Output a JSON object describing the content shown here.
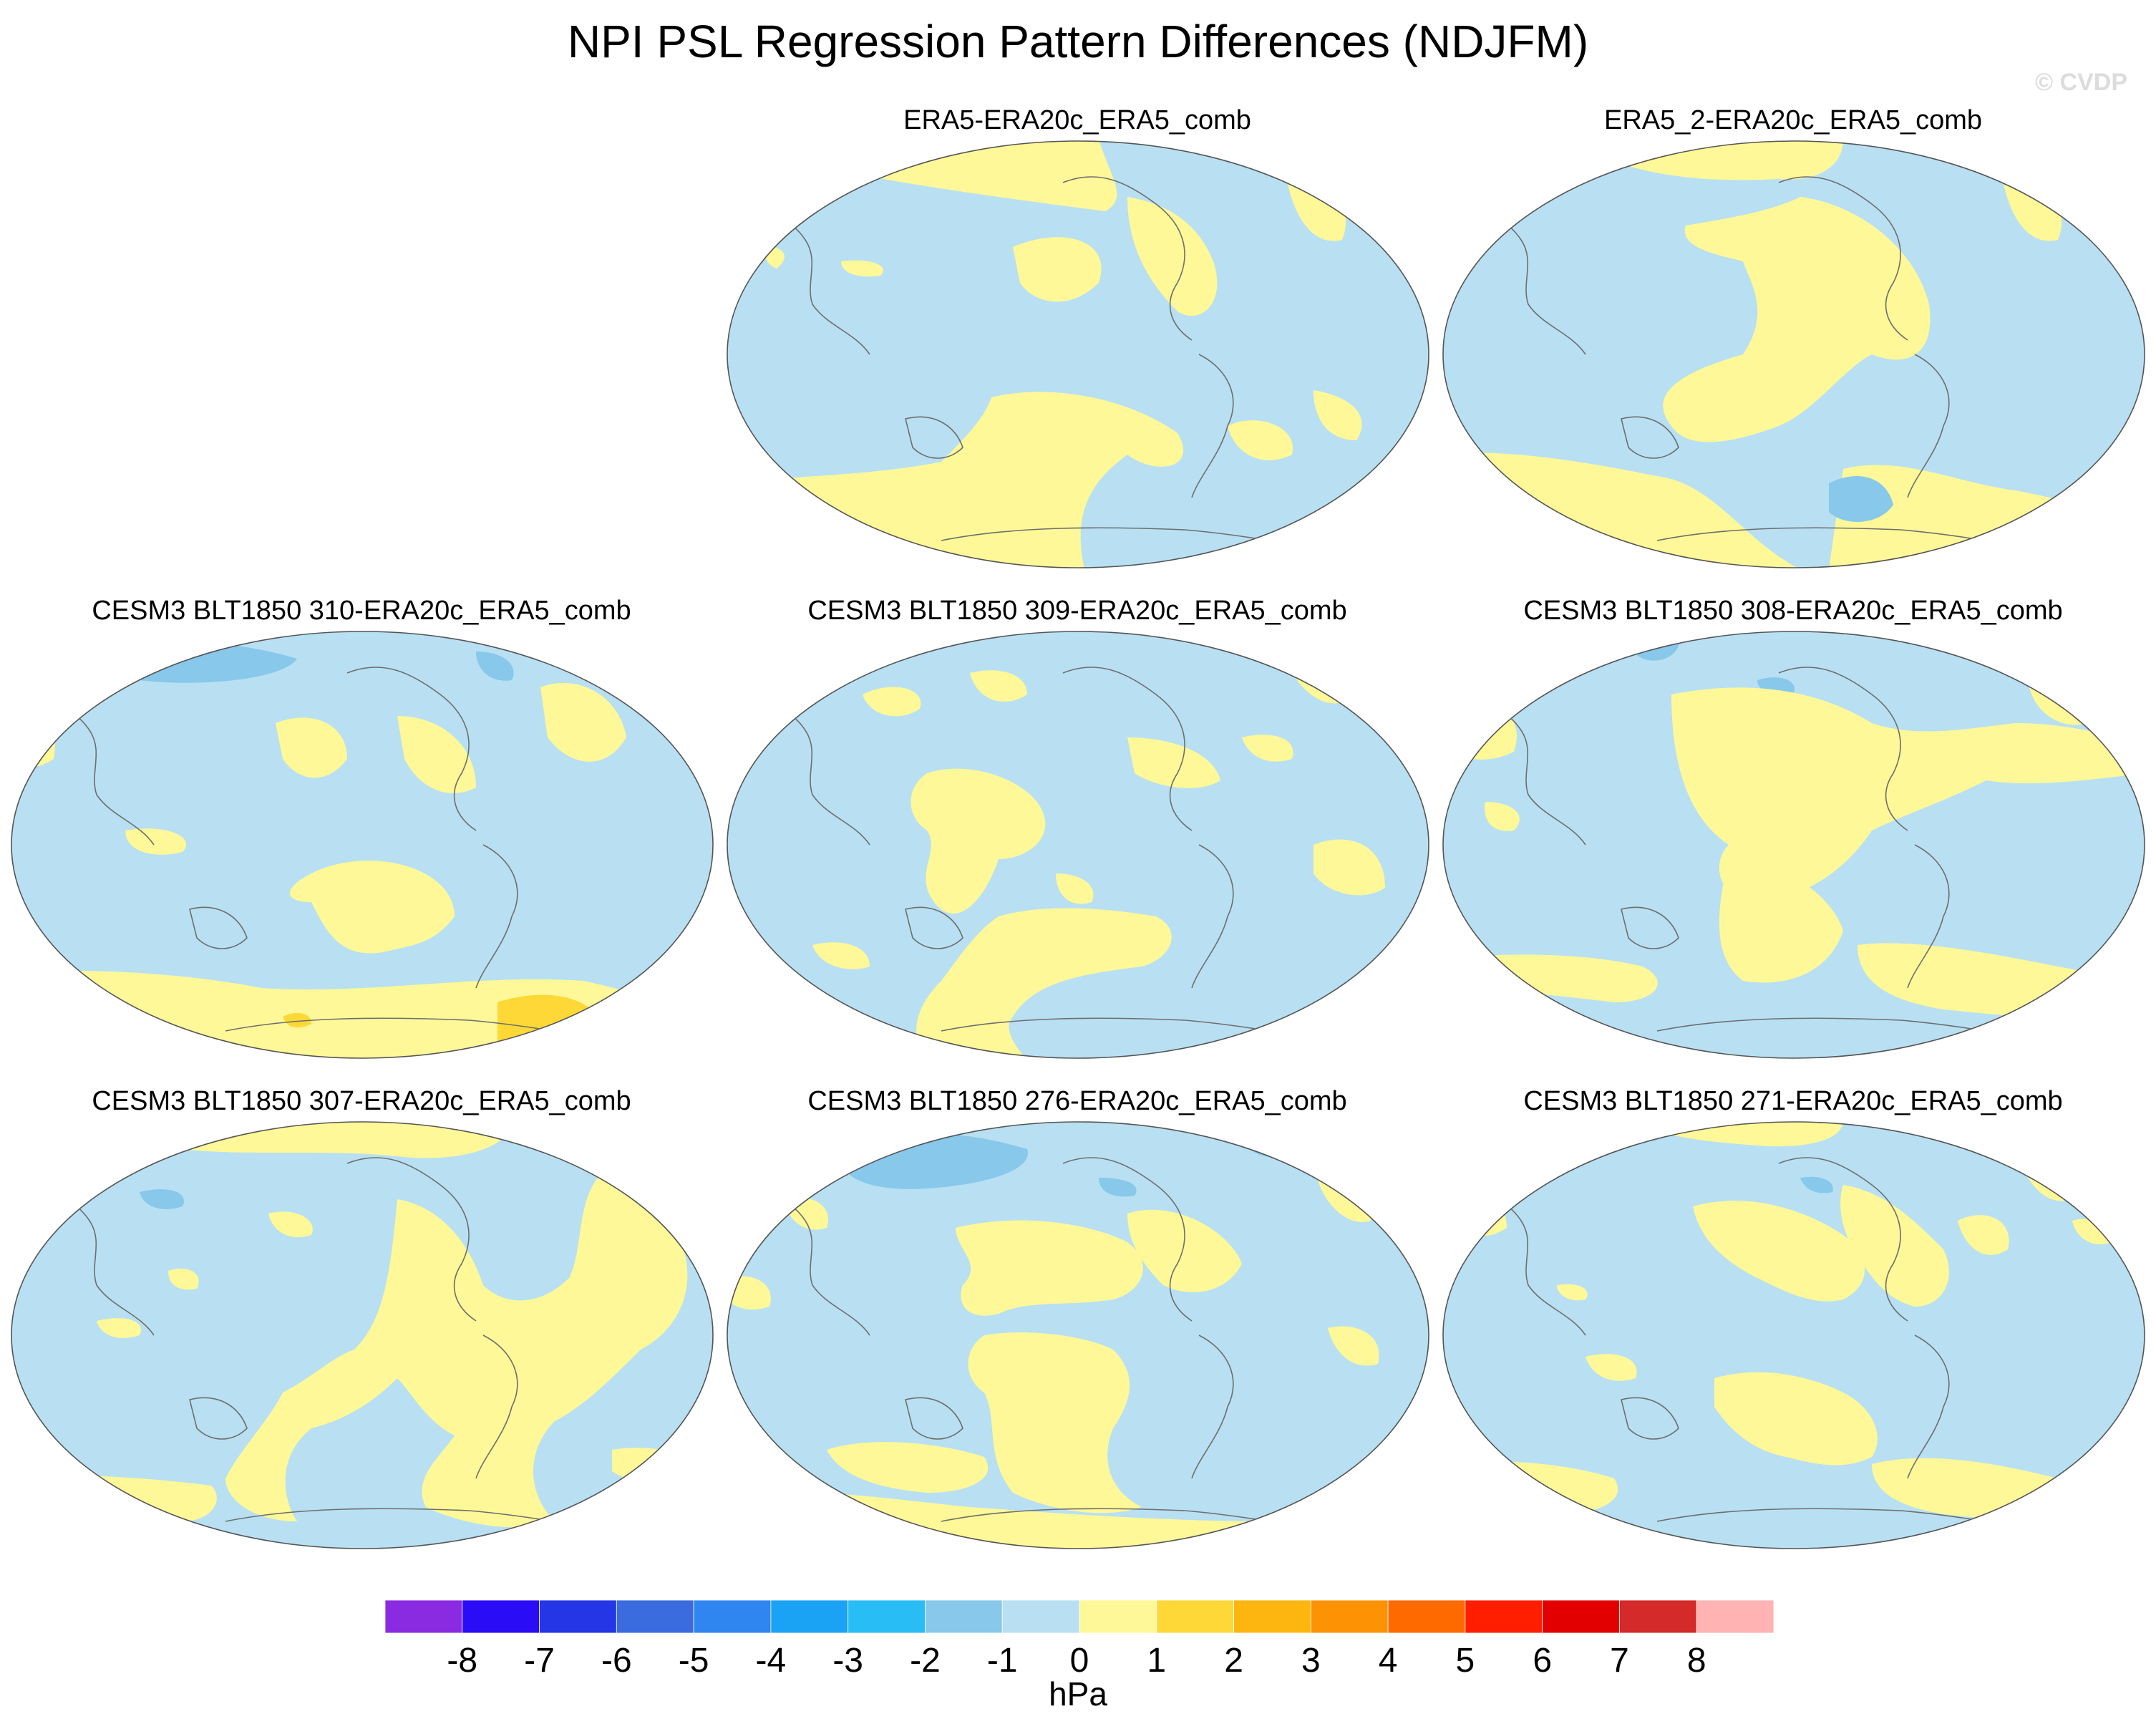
{
  "title": "NPI PSL Regression Pattern Differences (NDJFM)",
  "credit": "© CVDP",
  "colors": {
    "neg1": "#b8e0f2",
    "neg2": "#87c8eb",
    "pos1": "#fef898",
    "pos2": "#fdd836",
    "ocean_outline": "#555555",
    "coast": "#6e6e6e"
  },
  "panels": [
    {
      "id": "p1",
      "label": "ERA5-ERA20c_ERA5_comb"
    },
    {
      "id": "p2",
      "label": "ERA5_2-ERA20c_ERA5_comb"
    },
    {
      "id": "p3",
      "label": "CESM3 BLT1850 310-ERA20c_ERA5_comb"
    },
    {
      "id": "p4",
      "label": "CESM3 BLT1850 309-ERA20c_ERA5_comb"
    },
    {
      "id": "p5",
      "label": "CESM3 BLT1850 308-ERA20c_ERA5_comb"
    },
    {
      "id": "p6",
      "label": "CESM3 BLT1850 307-ERA20c_ERA5_comb"
    },
    {
      "id": "p7",
      "label": "CESM3 BLT1850 276-ERA20c_ERA5_comb"
    },
    {
      "id": "p8",
      "label": "CESM3 BLT1850 271-ERA20c_ERA5_comb"
    }
  ],
  "colorbar": {
    "units": "hPa",
    "colors": [
      "#8a2be2",
      "#2a0cf7",
      "#2536e6",
      "#3a6bdf",
      "#2f86f0",
      "#1aa3f5",
      "#29bdf5",
      "#87c8eb",
      "#b8e0f2",
      "#fef898",
      "#fdd836",
      "#fdb60f",
      "#fd9304",
      "#ff6a00",
      "#ff1e00",
      "#e30000",
      "#d42a2a",
      "#ffb3b3"
    ],
    "ticks": [
      "-8",
      "-7",
      "-6",
      "-5",
      "-4",
      "-3",
      "-2",
      "-1",
      "0",
      "1",
      "2",
      "3",
      "4",
      "5",
      "6",
      "7",
      "8"
    ]
  }
}
